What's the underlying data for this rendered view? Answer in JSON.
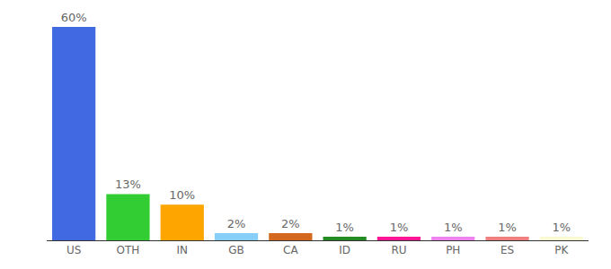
{
  "chart_data": {
    "type": "bar",
    "categories": [
      "US",
      "OTH",
      "IN",
      "GB",
      "CA",
      "ID",
      "RU",
      "PH",
      "ES",
      "PK"
    ],
    "values": [
      60,
      13,
      10,
      2,
      2,
      1,
      1,
      1,
      1,
      1
    ],
    "value_labels": [
      "60%",
      "13%",
      "10%",
      "2%",
      "2%",
      "1%",
      "1%",
      "1%",
      "1%",
      "1%"
    ],
    "colors": [
      "#4169e1",
      "#32cd32",
      "#ffa500",
      "#87cefa",
      "#d2691e",
      "#228b22",
      "#ff1493",
      "#ee82ee",
      "#f08080",
      "#fafad2"
    ],
    "ylim": [
      0,
      60
    ],
    "data_labels": true,
    "tick_labels": "x",
    "grid": false
  }
}
